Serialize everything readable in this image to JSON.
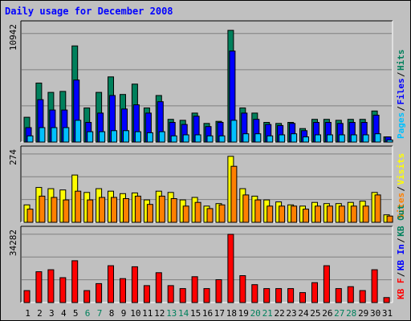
{
  "title": "Daily usage for December 2008",
  "colors": {
    "hits": "#00805c",
    "files": "#0000ff",
    "pages": "#00c0ff",
    "visits": "#ffff00",
    "sites": "#ff8000",
    "kb_out": "#00805c",
    "kb_in": "#0000ff",
    "kb_f": "#ff0000",
    "weekend_label": "#00805c",
    "weekday_label": "#000000"
  },
  "chart_data": [
    {
      "type": "bar",
      "name": "hits-files-pages",
      "ymax_label": "10942",
      "ylim": [
        0,
        10942
      ],
      "legend": [
        {
          "name": "Pages",
          "color": "#00c0ff"
        },
        {
          "name": "Files",
          "color": "#0000ff"
        },
        {
          "name": "Hits",
          "color": "#00805c"
        }
      ],
      "categories": [
        "1",
        "2",
        "3",
        "4",
        "5",
        "6",
        "7",
        "8",
        "9",
        "10",
        "11",
        "12",
        "13",
        "14",
        "15",
        "16",
        "17",
        "18",
        "19",
        "20",
        "21",
        "22",
        "23",
        "24",
        "25",
        "26",
        "27",
        "28",
        "29",
        "30",
        "31"
      ],
      "weekend": [
        "6",
        "7",
        "13",
        "14",
        "20",
        "21",
        "27",
        "28"
      ],
      "series": [
        {
          "name": "Hits",
          "values": [
            2400,
            5700,
            4800,
            4900,
            9300,
            3300,
            4800,
            6300,
            4600,
            5600,
            3300,
            4500,
            2200,
            2100,
            2800,
            1800,
            2000,
            10800,
            3300,
            2800,
            1900,
            1800,
            1900,
            1300,
            2200,
            2200,
            2100,
            2200,
            2200,
            3000,
            500
          ]
        },
        {
          "name": "Files",
          "values": [
            1400,
            4100,
            3100,
            3100,
            6000,
            1900,
            2800,
            4500,
            3200,
            3600,
            2800,
            3900,
            1900,
            1700,
            2500,
            1500,
            1900,
            8800,
            2800,
            2200,
            1700,
            1600,
            1800,
            1100,
            1900,
            1900,
            1800,
            1900,
            1900,
            2600,
            500
          ]
        },
        {
          "name": "Pages",
          "values": [
            600,
            1400,
            1400,
            1400,
            2100,
            1000,
            1000,
            1100,
            1100,
            1000,
            900,
            1000,
            600,
            700,
            700,
            600,
            600,
            2100,
            800,
            800,
            600,
            700,
            800,
            500,
            700,
            700,
            700,
            700,
            700,
            800,
            200
          ]
        }
      ]
    },
    {
      "type": "bar",
      "name": "visits-sites",
      "ymax_label": "274",
      "ylim": [
        0,
        274
      ],
      "legend": [
        {
          "name": "Sites",
          "color": "#ff8000"
        },
        {
          "name": "Visits",
          "color": "#ffff00"
        }
      ],
      "categories": [
        "1",
        "2",
        "3",
        "4",
        "5",
        "6",
        "7",
        "8",
        "9",
        "10",
        "11",
        "12",
        "13",
        "14",
        "15",
        "16",
        "17",
        "18",
        "19",
        "20",
        "21",
        "22",
        "23",
        "24",
        "25",
        "26",
        "27",
        "28",
        "29",
        "30",
        "31"
      ],
      "series": [
        {
          "name": "Visits",
          "values": [
            70,
            140,
            135,
            130,
            190,
            120,
            135,
            125,
            115,
            118,
            90,
            125,
            120,
            90,
            100,
            65,
            75,
            265,
            135,
            105,
            90,
            82,
            70,
            65,
            80,
            75,
            75,
            80,
            85,
            120,
            30
          ]
        },
        {
          "name": "Sites",
          "values": [
            53,
            105,
            100,
            90,
            125,
            90,
            100,
            100,
            95,
            105,
            72,
            105,
            95,
            65,
            80,
            55,
            70,
            225,
            110,
            90,
            65,
            65,
            65,
            53,
            65,
            65,
            65,
            65,
            65,
            110,
            25
          ]
        }
      ]
    },
    {
      "type": "bar",
      "name": "kbytes",
      "ymax_label": "34282",
      "ylim": [
        0,
        34282
      ],
      "legend": [
        {
          "name": "KB F",
          "color": "#ff0000"
        },
        {
          "name": "KB In",
          "color": "#0000ff"
        },
        {
          "name": "KB Out",
          "color": "#00805c"
        }
      ],
      "categories": [
        "1",
        "2",
        "3",
        "4",
        "5",
        "6",
        "7",
        "8",
        "9",
        "10",
        "11",
        "12",
        "13",
        "14",
        "15",
        "16",
        "17",
        "18",
        "19",
        "20",
        "21",
        "22",
        "23",
        "24",
        "25",
        "26",
        "27",
        "28",
        "29",
        "30",
        "31"
      ],
      "series": [
        {
          "name": "KB F",
          "values": [
            6000,
            15500,
            16500,
            12500,
            21000,
            6000,
            9500,
            18500,
            12000,
            18000,
            8500,
            15000,
            8500,
            7000,
            13000,
            7000,
            11500,
            34282,
            13500,
            9000,
            7000,
            7000,
            7000,
            5000,
            10000,
            18500,
            7000,
            8000,
            6000,
            16500,
            2500
          ]
        }
      ]
    }
  ]
}
